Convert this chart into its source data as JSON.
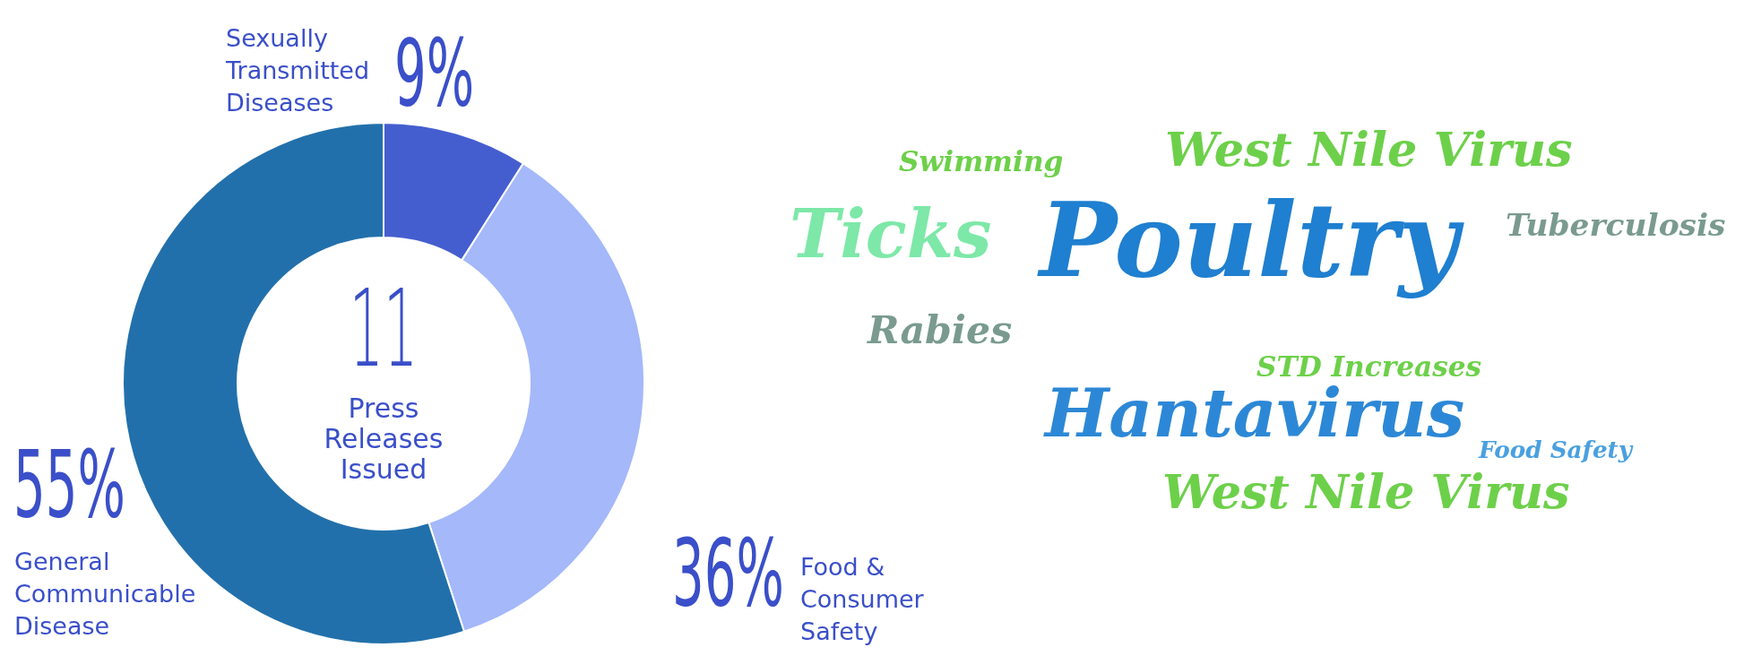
{
  "chart_data": [
    {
      "type": "donut",
      "categories": [
        "Sexually Transmitted Diseases",
        "Food & Consumer Safety",
        "General Communicable Disease"
      ],
      "values": [
        9,
        36,
        55
      ],
      "colors": [
        "#455ecf",
        "#a4b8fa",
        "#2270ab"
      ],
      "value_labels": [
        "9%",
        "36%",
        "55%"
      ],
      "annotations": [
        "11",
        "Press Releases Issued"
      ]
    },
    {
      "type": "other",
      "annotations": [
        "Swimming",
        "West Nile Virus",
        "Ticks",
        "Tuberculosis",
        "Poultry",
        "Rabies",
        "STD Increases",
        "Hantavirus",
        "Food Safety",
        "West Nile Virus"
      ]
    }
  ]
}
